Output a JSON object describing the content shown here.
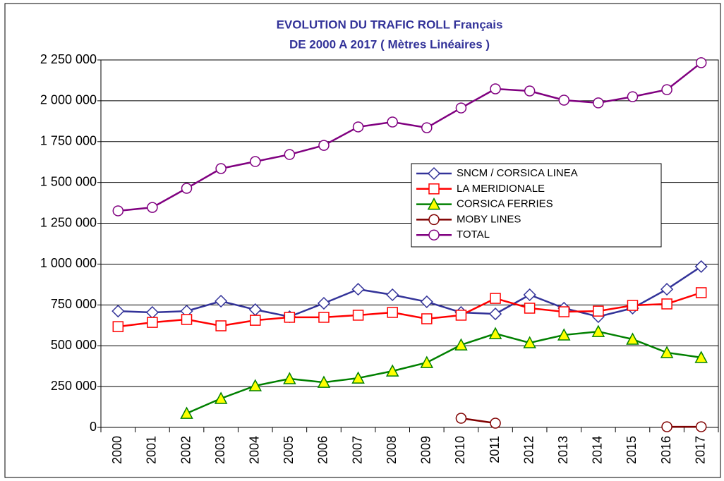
{
  "chart_data": {
    "type": "line",
    "title": "EVOLUTION DU TRAFIC ROLL Français",
    "subtitle": "DE 2000 A 2017   ( Mètres Linéaires )",
    "categories": [
      "2000",
      "2001",
      "2002",
      "2003",
      "2004",
      "2005",
      "2006",
      "2007",
      "2008",
      "2009",
      "2010",
      "2011",
      "2012",
      "2013",
      "2014",
      "2015",
      "2016",
      "2017"
    ],
    "series": [
      {
        "name": "SNCM / CORSICA LINEA",
        "color": "#333399",
        "values": [
          712000,
          704000,
          712000,
          773000,
          721000,
          678000,
          760000,
          846000,
          812000,
          769000,
          704000,
          695000,
          812000,
          730000,
          678000,
          730000,
          846000,
          985000
        ]
      },
      {
        "name": "LA MERIDIONALE",
        "color": "#ff0000",
        "values": [
          617000,
          643000,
          661000,
          622000,
          656000,
          674000,
          674000,
          687000,
          704000,
          665000,
          687000,
          790000,
          730000,
          708000,
          712000,
          747000,
          756000,
          825000
        ]
      },
      {
        "name": "CORSICA FERRIES",
        "color": "#008000",
        "values": [
          null,
          null,
          86000,
          177000,
          255000,
          298000,
          276000,
          302000,
          345000,
          397000,
          505000,
          574000,
          518000,
          566000,
          587000,
          540000,
          458000,
          428000
        ]
      },
      {
        "name": "MOBY LINES",
        "color": "#800000",
        "values": [
          null,
          null,
          null,
          null,
          null,
          null,
          null,
          null,
          null,
          null,
          56000,
          26000,
          null,
          null,
          null,
          null,
          4000,
          4000
        ]
      },
      {
        "name": "TOTAL",
        "color": "#800080",
        "values": [
          1326000,
          1347000,
          1464000,
          1585000,
          1628000,
          1671000,
          1727000,
          1840000,
          1870000,
          1835000,
          1956000,
          2073000,
          2060000,
          2004000,
          1987000,
          2025000,
          2068000,
          2233000
        ]
      }
    ],
    "ylim": [
      0,
      2250000
    ],
    "yticks": [
      0,
      {
        "value": 250000,
        "label": "250 000"
      },
      {
        "value": 500000,
        "label": "500 000"
      },
      {
        "value": 750000,
        "label": "750 000"
      },
      {
        "value": 1000000,
        "label": "1 000 000"
      },
      {
        "value": 1250000,
        "label": "1 250 000"
      },
      {
        "value": 1500000,
        "label": "1 500 000"
      },
      {
        "value": 1750000,
        "label": "1 750 000"
      },
      {
        "value": 2000000,
        "label": "2 000 000"
      },
      {
        "value": 2250000,
        "label": "2 250 000"
      }
    ],
    "grid": true,
    "legend": "right"
  }
}
